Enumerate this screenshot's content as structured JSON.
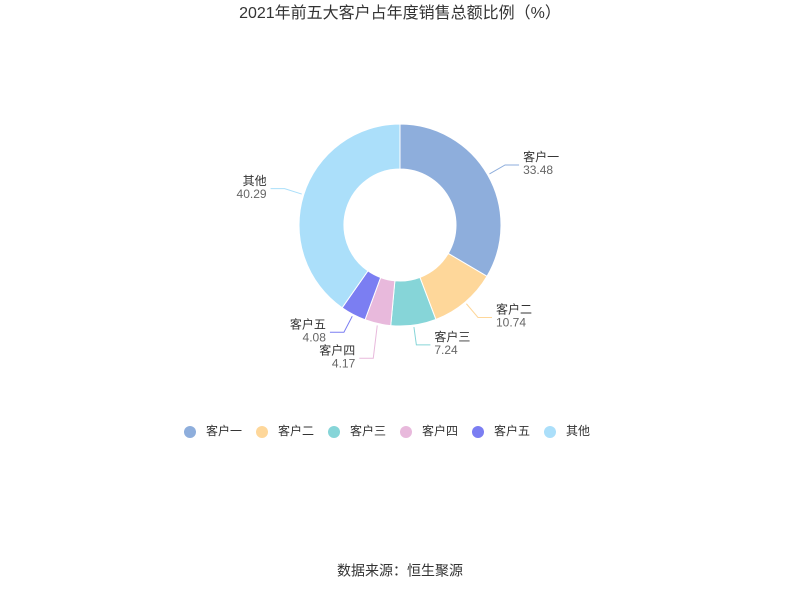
{
  "chart_data": {
    "type": "donut",
    "title": "2021年前五大客户占年度销售总额比例（%）",
    "categories": [
      "客户一",
      "客户二",
      "客户三",
      "客户四",
      "客户五",
      "其他"
    ],
    "values": [
      33.48,
      10.74,
      7.24,
      4.17,
      4.08,
      40.29
    ],
    "colors": [
      "#8eaedc",
      "#fed79a",
      "#86d5d8",
      "#e8b9dc",
      "#7b7ef2",
      "#abdffa"
    ],
    "legend": "bottom",
    "source": "数据来源：恒生聚源"
  }
}
